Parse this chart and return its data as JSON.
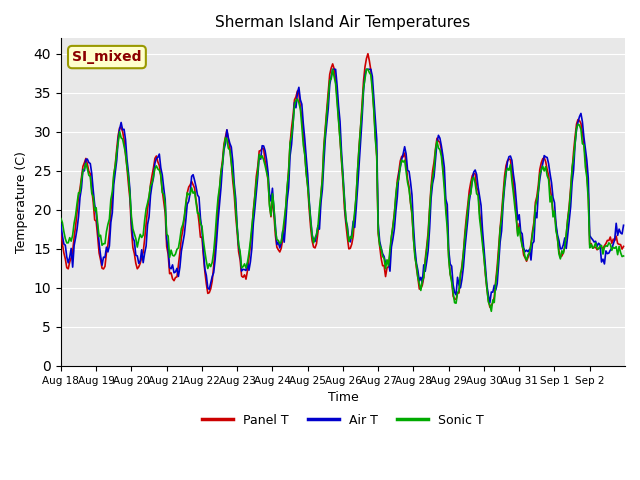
{
  "title": "Sherman Island Air Temperatures",
  "xlabel": "Time",
  "ylabel": "Temperature (C)",
  "ylim": [
    0,
    42
  ],
  "yticks": [
    0,
    5,
    10,
    15,
    20,
    25,
    30,
    35,
    40
  ],
  "x_labels": [
    "Aug 18",
    "Aug 19",
    "Aug 20",
    "Aug 21",
    "Aug 22",
    "Aug 23",
    "Aug 24",
    "Aug 25",
    "Aug 26",
    "Aug 27",
    "Aug 28",
    "Aug 29",
    "Aug 30",
    "Aug 31",
    "Sep 1",
    "Sep 2"
  ],
  "panel_color": "#cc0000",
  "air_color": "#0000cc",
  "sonic_color": "#00aa00",
  "background_color": "#e8e8e8",
  "annotation_text": "SI_mixed",
  "annotation_bg": "#ffffcc",
  "annotation_border": "#999900",
  "annotation_text_color": "#8b0000",
  "line_width": 1.2,
  "n_days": 16,
  "day_peaks_panel": [
    26.5,
    30.5,
    26.5,
    23.5,
    29.5,
    28.0,
    35.0,
    38.5,
    39.5,
    27.0,
    29.0,
    24.5,
    26.5,
    26.5,
    31.5,
    16.0
  ],
  "day_troughs_panel": [
    12.5,
    12.5,
    12.5,
    11.0,
    9.5,
    11.0,
    14.5,
    15.0,
    15.0,
    12.0,
    10.0,
    8.5,
    7.5,
    13.5,
    14.0,
    15.0
  ]
}
